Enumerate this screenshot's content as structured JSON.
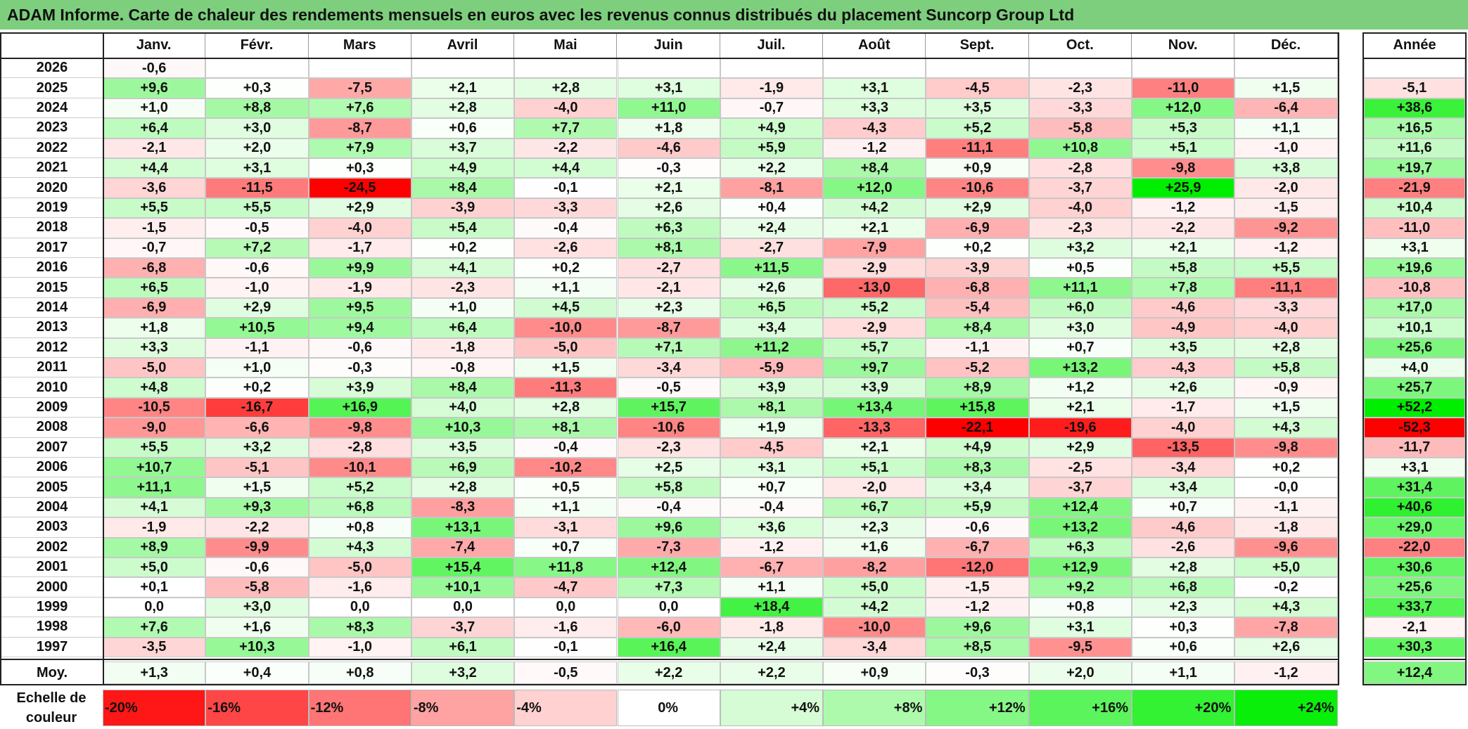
{
  "title": "ADAM Informe. Carte de chaleur des rendements mensuels en euros avec les revenus connus distribués du placement Suncorp Group Ltd",
  "chart_data": {
    "type": "heatmap",
    "months": [
      "Janv.",
      "Févr.",
      "Mars",
      "Avril",
      "Mai",
      "Juin",
      "Juil.",
      "Août",
      "Sept.",
      "Oct.",
      "Nov.",
      "Déc."
    ],
    "annual_label": "Année",
    "average_label": "Moy.",
    "rows": [
      {
        "year": "2026",
        "values": [
          "-0,6",
          "",
          "",
          "",
          "",
          "",
          "",
          "",
          "",
          "",
          "",
          ""
        ],
        "annual": ""
      },
      {
        "year": "2025",
        "values": [
          "+9,6",
          "+0,3",
          "-7,5",
          "+2,1",
          "+2,8",
          "+3,1",
          "-1,9",
          "+3,1",
          "-4,5",
          "-2,3",
          "-11,0",
          "+1,5"
        ],
        "annual": "-5,1"
      },
      {
        "year": "2024",
        "values": [
          "+1,0",
          "+8,8",
          "+7,6",
          "+2,8",
          "-4,0",
          "+11,0",
          "-0,7",
          "+3,3",
          "+3,5",
          "-3,3",
          "+12,0",
          "-6,4"
        ],
        "annual": "+38,6"
      },
      {
        "year": "2023",
        "values": [
          "+6,4",
          "+3,0",
          "-8,7",
          "+0,6",
          "+7,7",
          "+1,8",
          "+4,9",
          "-4,3",
          "+5,2",
          "-5,8",
          "+5,3",
          "+1,1"
        ],
        "annual": "+16,5"
      },
      {
        "year": "2022",
        "values": [
          "-2,1",
          "+2,0",
          "+7,9",
          "+3,7",
          "-2,2",
          "-4,6",
          "+5,9",
          "-1,2",
          "-11,1",
          "+10,8",
          "+5,1",
          "-1,0"
        ],
        "annual": "+11,6"
      },
      {
        "year": "2021",
        "values": [
          "+4,4",
          "+3,1",
          "+0,3",
          "+4,9",
          "+4,4",
          "-0,3",
          "+2,2",
          "+8,4",
          "+0,9",
          "-2,8",
          "-9,8",
          "+3,8"
        ],
        "annual": "+19,7"
      },
      {
        "year": "2020",
        "values": [
          "-3,6",
          "-11,5",
          "-24,5",
          "+8,4",
          "-0,1",
          "+2,1",
          "-8,1",
          "+12,0",
          "-10,6",
          "-3,7",
          "+25,9",
          "-2,0"
        ],
        "annual": "-21,9"
      },
      {
        "year": "2019",
        "values": [
          "+5,5",
          "+5,5",
          "+2,9",
          "-3,9",
          "-3,3",
          "+2,6",
          "+0,4",
          "+4,2",
          "+2,9",
          "-4,0",
          "-1,2",
          "-1,5"
        ],
        "annual": "+10,4"
      },
      {
        "year": "2018",
        "values": [
          "-1,5",
          "-0,5",
          "-4,0",
          "+5,4",
          "-0,4",
          "+6,3",
          "+2,4",
          "+2,1",
          "-6,9",
          "-2,3",
          "-2,2",
          "-9,2"
        ],
        "annual": "-11,0"
      },
      {
        "year": "2017",
        "values": [
          "-0,7",
          "+7,2",
          "-1,7",
          "+0,2",
          "-2,6",
          "+8,1",
          "-2,7",
          "-7,9",
          "+0,2",
          "+3,2",
          "+2,1",
          "-1,2"
        ],
        "annual": "+3,1"
      },
      {
        "year": "2016",
        "values": [
          "-6,8",
          "-0,6",
          "+9,9",
          "+4,1",
          "+0,2",
          "-2,7",
          "+11,5",
          "-2,9",
          "-3,9",
          "+0,5",
          "+5,8",
          "+5,5"
        ],
        "annual": "+19,6"
      },
      {
        "year": "2015",
        "values": [
          "+6,5",
          "-1,0",
          "-1,9",
          "-2,3",
          "+1,1",
          "-2,1",
          "+2,6",
          "-13,0",
          "-6,8",
          "+11,1",
          "+7,8",
          "-11,1"
        ],
        "annual": "-10,8"
      },
      {
        "year": "2014",
        "values": [
          "-6,9",
          "+2,9",
          "+9,5",
          "+1,0",
          "+4,5",
          "+2,3",
          "+6,5",
          "+5,2",
          "-5,4",
          "+6,0",
          "-4,6",
          "-3,3"
        ],
        "annual": "+17,0"
      },
      {
        "year": "2013",
        "values": [
          "+1,8",
          "+10,5",
          "+9,4",
          "+6,4",
          "-10,0",
          "-8,7",
          "+3,4",
          "-2,9",
          "+8,4",
          "+3,0",
          "-4,9",
          "-4,0"
        ],
        "annual": "+10,1"
      },
      {
        "year": "2012",
        "values": [
          "+3,3",
          "-1,1",
          "-0,6",
          "-1,8",
          "-5,0",
          "+7,1",
          "+11,2",
          "+5,7",
          "-1,1",
          "+0,7",
          "+3,5",
          "+2,8"
        ],
        "annual": "+25,6"
      },
      {
        "year": "2011",
        "values": [
          "-5,0",
          "+1,0",
          "-0,3",
          "-0,8",
          "+1,5",
          "-3,4",
          "-5,9",
          "+9,7",
          "-5,2",
          "+13,2",
          "-4,3",
          "+5,8"
        ],
        "annual": "+4,0"
      },
      {
        "year": "2010",
        "values": [
          "+4,8",
          "+0,2",
          "+3,9",
          "+8,4",
          "-11,3",
          "-0,5",
          "+3,9",
          "+3,9",
          "+8,9",
          "+1,2",
          "+2,6",
          "-0,9"
        ],
        "annual": "+25,7"
      },
      {
        "year": "2009",
        "values": [
          "-10,5",
          "-16,7",
          "+16,9",
          "+4,0",
          "+2,8",
          "+15,7",
          "+8,1",
          "+13,4",
          "+15,8",
          "+2,1",
          "-1,7",
          "+1,5"
        ],
        "annual": "+52,2"
      },
      {
        "year": "2008",
        "values": [
          "-9,0",
          "-6,6",
          "-9,8",
          "+10,3",
          "+8,1",
          "-10,6",
          "+1,9",
          "-13,3",
          "-22,1",
          "-19,6",
          "-4,0",
          "+4,3"
        ],
        "annual": "-52,3"
      },
      {
        "year": "2007",
        "values": [
          "+5,5",
          "+3,2",
          "-2,8",
          "+3,5",
          "-0,4",
          "-2,3",
          "-4,5",
          "+2,1",
          "+4,9",
          "+2,9",
          "-13,5",
          "-9,8"
        ],
        "annual": "-11,7"
      },
      {
        "year": "2006",
        "values": [
          "+10,7",
          "-5,1",
          "-10,1",
          "+6,9",
          "-10,2",
          "+2,5",
          "+3,1",
          "+5,1",
          "+8,3",
          "-2,5",
          "-3,4",
          "+0,2"
        ],
        "annual": "+3,1"
      },
      {
        "year": "2005",
        "values": [
          "+11,1",
          "+1,5",
          "+5,2",
          "+2,8",
          "+0,5",
          "+5,8",
          "+0,7",
          "-2,0",
          "+3,4",
          "-3,7",
          "+3,4",
          "-0,0"
        ],
        "annual": "+31,4"
      },
      {
        "year": "2004",
        "values": [
          "+4,1",
          "+9,3",
          "+6,8",
          "-8,3",
          "+1,1",
          "-0,4",
          "-0,4",
          "+6,7",
          "+5,9",
          "+12,4",
          "+0,7",
          "-1,1"
        ],
        "annual": "+40,6"
      },
      {
        "year": "2003",
        "values": [
          "-1,9",
          "-2,2",
          "+0,8",
          "+13,1",
          "-3,1",
          "+9,6",
          "+3,6",
          "+2,3",
          "-0,6",
          "+13,2",
          "-4,6",
          "-1,8"
        ],
        "annual": "+29,0"
      },
      {
        "year": "2002",
        "values": [
          "+8,9",
          "-9,9",
          "+4,3",
          "-7,4",
          "+0,7",
          "-7,3",
          "-1,2",
          "+1,6",
          "-6,7",
          "+6,3",
          "-2,6",
          "-9,6"
        ],
        "annual": "-22,0"
      },
      {
        "year": "2001",
        "values": [
          "+5,0",
          "-0,6",
          "-5,0",
          "+15,4",
          "+11,8",
          "+12,4",
          "-6,7",
          "-8,2",
          "-12,0",
          "+12,9",
          "+2,8",
          "+5,0"
        ],
        "annual": "+30,6"
      },
      {
        "year": "2000",
        "values": [
          "+0,1",
          "-5,8",
          "-1,6",
          "+10,1",
          "-4,7",
          "+7,3",
          "+1,1",
          "+5,0",
          "-1,5",
          "+9,2",
          "+6,8",
          "-0,2"
        ],
        "annual": "+25,6"
      },
      {
        "year": "1999",
        "values": [
          "0,0",
          "+3,0",
          "0,0",
          "0,0",
          "0,0",
          "0,0",
          "+18,4",
          "+4,2",
          "-1,2",
          "+0,8",
          "+2,3",
          "+4,3"
        ],
        "annual": "+33,7"
      },
      {
        "year": "1998",
        "values": [
          "+7,6",
          "+1,6",
          "+8,3",
          "-3,7",
          "-1,6",
          "-6,0",
          "-1,8",
          "-10,0",
          "+9,6",
          "+3,1",
          "+0,3",
          "-7,8"
        ],
        "annual": "-2,1"
      },
      {
        "year": "1997",
        "values": [
          "-3,5",
          "+10,3",
          "-1,0",
          "+6,1",
          "-0,1",
          "+16,4",
          "+2,4",
          "-3,4",
          "+8,5",
          "-9,5",
          "+0,6",
          "+2,6"
        ],
        "annual": "+30,3"
      }
    ],
    "average": {
      "values": [
        "+1,3",
        "+0,4",
        "+0,8",
        "+3,2",
        "-0,5",
        "+2,2",
        "+2,2",
        "+0,9",
        "-0,3",
        "+2,0",
        "+1,1",
        "-1,2"
      ],
      "annual": "+12,4"
    },
    "scale_label": "Echelle de couleur",
    "scale": [
      "-20%",
      "-16%",
      "-12%",
      "-8%",
      "-4%",
      "0%",
      "+4%",
      "+8%",
      "+12%",
      "+16%",
      "+20%",
      "+24%"
    ],
    "colors": {
      "negative_max": "#ff0000",
      "positive_max": "#00ee00",
      "neutral": "#ffffff",
      "title_bg": "#7dcf7d"
    }
  }
}
